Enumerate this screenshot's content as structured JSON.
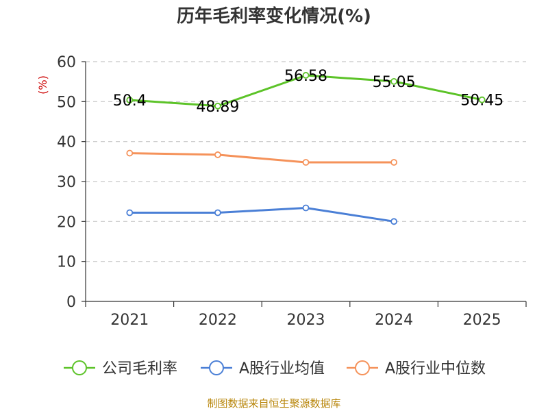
{
  "chart_data": {
    "type": "line",
    "title": "历年毛利率变化情况(%)",
    "ylabel": "(%)",
    "xlabel": "",
    "categories": [
      "2021",
      "2022",
      "2023",
      "2024",
      "2025"
    ],
    "ylim": [
      0,
      60
    ],
    "yticks": [
      0,
      10,
      20,
      30,
      40,
      50,
      60
    ],
    "grid": true,
    "legend_position": "bottom",
    "series": [
      {
        "name": "公司毛利率",
        "color": "#5cc328",
        "values": [
          50.4,
          48.89,
          56.58,
          55.05,
          50.45
        ],
        "data_labels": [
          "50.4",
          "48.89",
          "56.58",
          "55.05",
          "50.45"
        ]
      },
      {
        "name": "A股行业均值",
        "color": "#4a7fd6",
        "values": [
          22.2,
          22.2,
          23.4,
          20.0,
          null
        ]
      },
      {
        "name": "A股行业中位数",
        "color": "#f5925a",
        "values": [
          37.1,
          36.7,
          34.8,
          34.8,
          null
        ]
      }
    ],
    "source": "制图数据来自恒生聚源数据库"
  }
}
